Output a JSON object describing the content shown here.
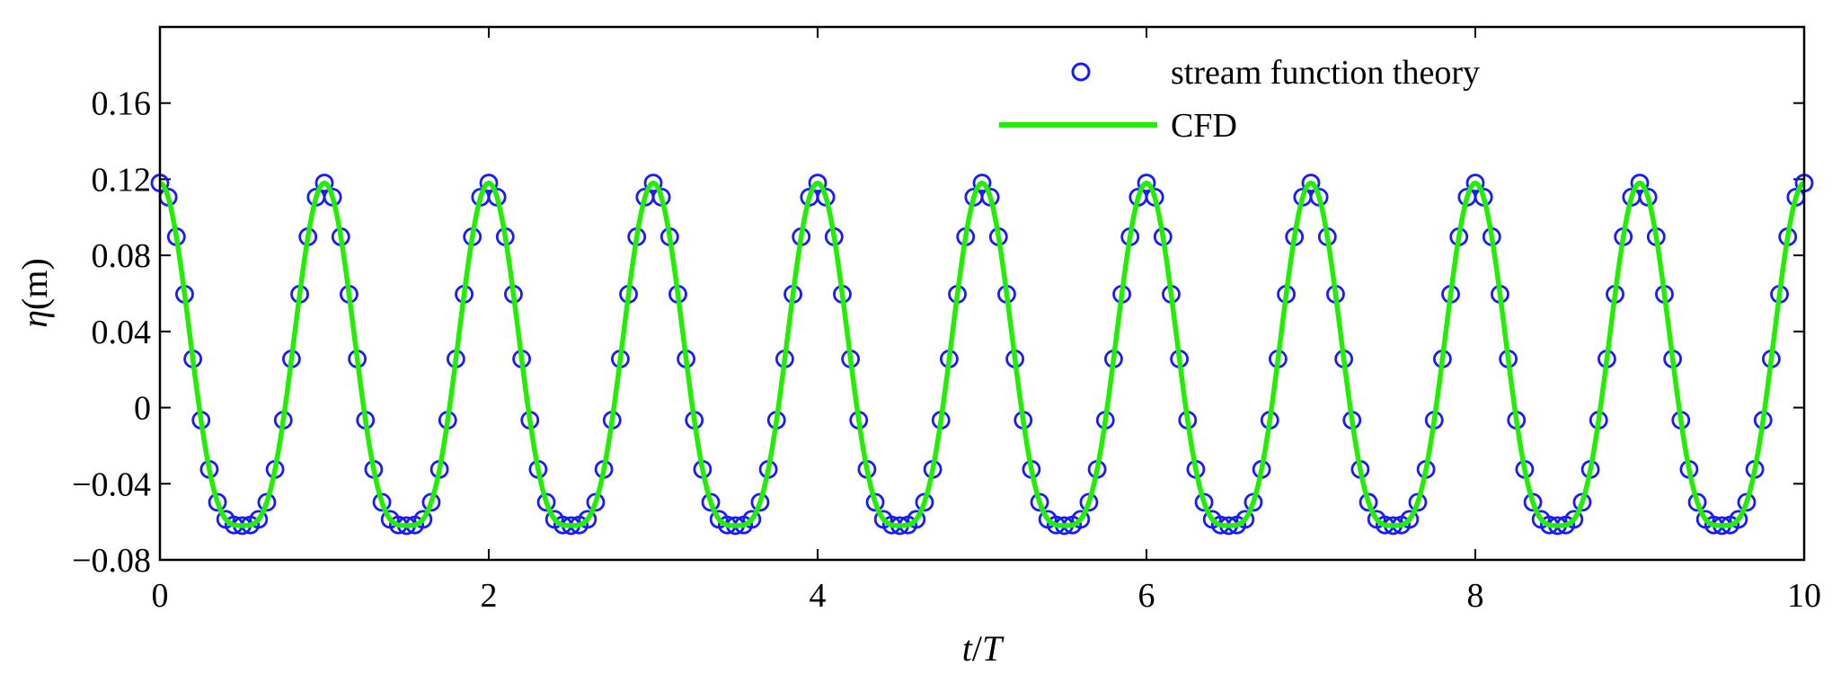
{
  "chart_data": {
    "type": "line",
    "title": "",
    "xlabel": {
      "italic1": "t",
      "sep": "/",
      "italic2": "T"
    },
    "ylabel": {
      "symbol": "η",
      "unit": "(m)"
    },
    "xlim": [
      0,
      10
    ],
    "ylim": [
      -0.08,
      0.2
    ],
    "xticks": [
      0,
      2,
      4,
      6,
      8,
      10
    ],
    "xtick_labels": [
      "0",
      "2",
      "4",
      "6",
      "8",
      "10"
    ],
    "yticks": [
      -0.08,
      -0.04,
      0,
      0.04,
      0.08,
      0.12,
      0.16
    ],
    "ytick_labels": [
      "−0.08",
      "−0.04",
      "0",
      "0.04",
      "0.08",
      "0.12",
      "0.16"
    ],
    "legend_position": "top-center",
    "wave": {
      "period": 1,
      "crest": 0.118,
      "trough": -0.062,
      "shape_exponent": 1.7
    },
    "series": [
      {
        "name": "stream function theory",
        "style": "markers",
        "marker": "circle-open",
        "color": "#1a1aff",
        "samples_per_period": 20,
        "x_start": 0,
        "x_end": 10
      },
      {
        "name": "CFD",
        "style": "line",
        "color": "#22ee00",
        "samples_per_period": 80,
        "x_start": 0,
        "x_end": 10
      }
    ]
  }
}
